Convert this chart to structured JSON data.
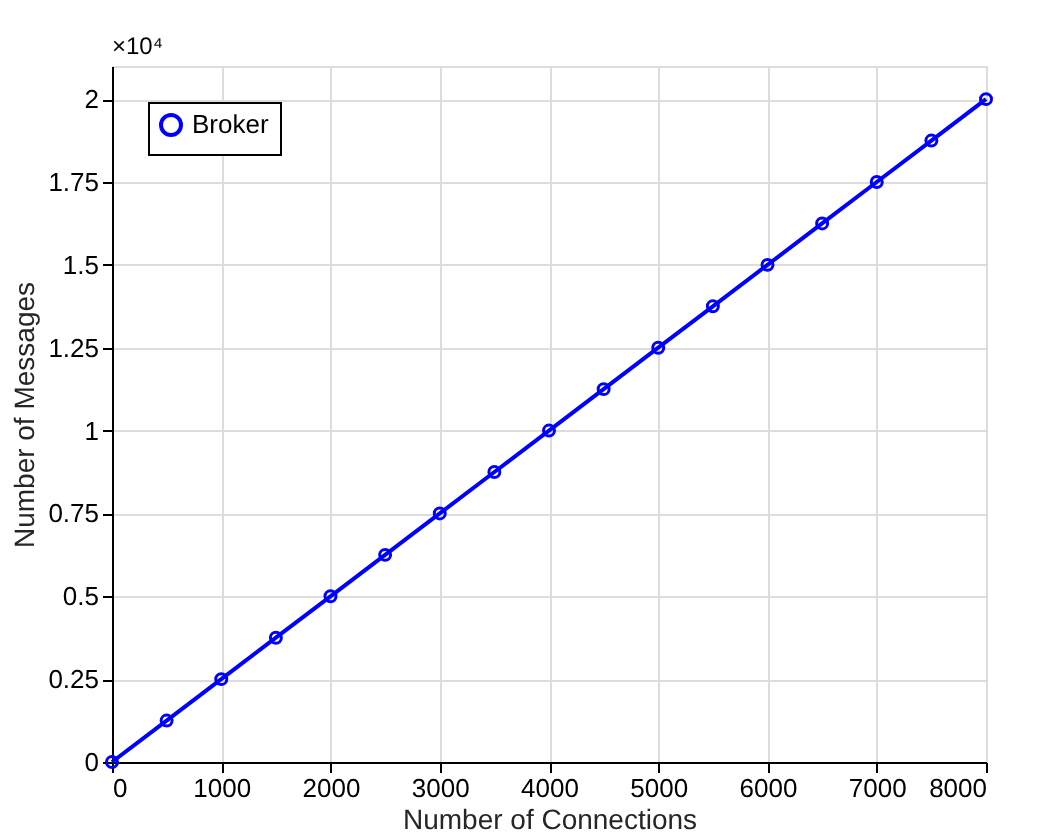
{
  "chart_data": {
    "type": "line",
    "xlabel": "Number of Connections",
    "ylabel": "Number of Messages",
    "annotations": [
      "×10⁴"
    ],
    "x": [
      0,
      500,
      1000,
      1500,
      2000,
      2500,
      3000,
      3500,
      4000,
      4500,
      5000,
      5500,
      6000,
      6500,
      7000,
      7500,
      8000
    ],
    "series": [
      {
        "name": "Broker",
        "color": "#0000ff",
        "values": [
          0,
          0.125,
          0.25,
          0.375,
          0.5,
          0.625,
          0.75,
          0.875,
          1,
          1.125,
          1.25,
          1.375,
          1.5,
          1.625,
          1.75,
          1.875,
          2
        ]
      }
    ],
    "xlim": [
      0,
      8000
    ],
    "xticks": [
      0,
      1000,
      2000,
      3000,
      4000,
      5000,
      6000,
      7000,
      8000
    ],
    "ylim": [
      0,
      2.1
    ],
    "yticks": [
      0,
      0.25,
      0.5,
      0.75,
      1,
      1.25,
      1.5,
      1.75,
      2
    ],
    "grid": true,
    "legend": "top left",
    "marker": "circle",
    "line_style": "solid"
  }
}
